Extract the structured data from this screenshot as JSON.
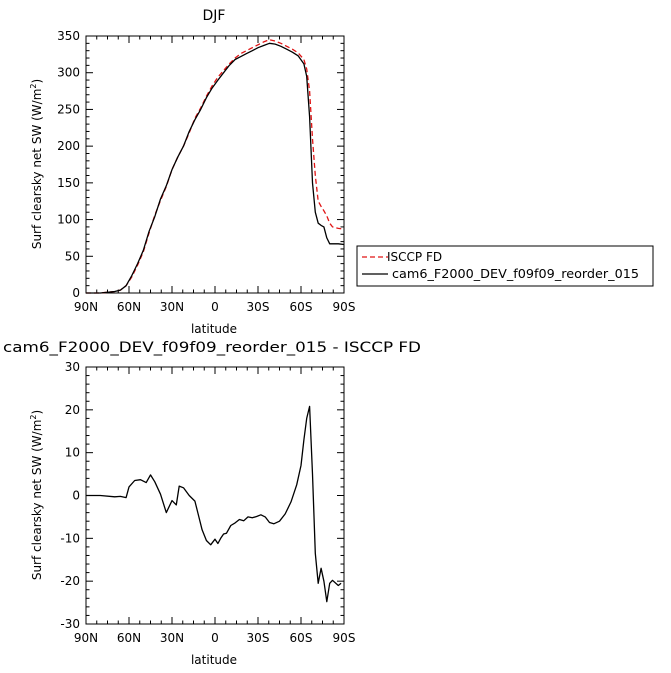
{
  "chart_data": [
    {
      "type": "line",
      "title": "DJF",
      "xlabel": "latitude",
      "ylabel": "Surf clearsky net SW (W/m",
      "ylabel_sup": "2",
      "ylabel_end": ")",
      "xlim": [
        90,
        -90
      ],
      "ylim": [
        0,
        350
      ],
      "xticks": [
        90,
        60,
        30,
        0,
        -30,
        -60,
        -90
      ],
      "xtick_labels": [
        "90N",
        "60N",
        "30N",
        "0",
        "30S",
        "60S",
        "90S"
      ],
      "yticks": [
        0,
        50,
        100,
        150,
        200,
        250,
        300,
        350
      ],
      "ytick_labels": [
        "0",
        "50",
        "100",
        "150",
        "200",
        "250",
        "300",
        "350"
      ],
      "legend_position": "right",
      "series": [
        {
          "name": "ISCCP FD",
          "color": "#e01414",
          "dash": "dashed",
          "x": [
            90,
            80,
            70,
            66,
            62,
            58,
            54,
            50,
            46,
            42,
            38,
            34,
            30,
            26,
            22,
            18,
            14,
            10,
            6,
            2,
            -2,
            -6,
            -10,
            -14,
            -18,
            -22,
            -26,
            -30,
            -34,
            -38,
            -42,
            -46,
            -50,
            -54,
            -58,
            -62,
            -64,
            -66,
            -68,
            -70,
            -72,
            -74,
            -76,
            -78,
            -80,
            -82,
            -86,
            -90
          ],
          "y": [
            0,
            0,
            2,
            4,
            10,
            22,
            38,
            56,
            82,
            106,
            126,
            145,
            168,
            185,
            200,
            218,
            238,
            252,
            268,
            282,
            294,
            303,
            312,
            320,
            326,
            330,
            334,
            338,
            342,
            345,
            343,
            340,
            336,
            332,
            327,
            318,
            305,
            275,
            210,
            160,
            125,
            118,
            112,
            105,
            95,
            90,
            88,
            87
          ]
        },
        {
          "name": "cam6_F2000_DEV_f09f09_reorder_015",
          "color": "#000000",
          "dash": "solid",
          "x": [
            90,
            80,
            70,
            66,
            62,
            58,
            54,
            50,
            46,
            42,
            38,
            34,
            30,
            26,
            22,
            18,
            14,
            10,
            6,
            2,
            -2,
            -6,
            -10,
            -14,
            -18,
            -22,
            -26,
            -30,
            -34,
            -38,
            -42,
            -46,
            -50,
            -54,
            -58,
            -62,
            -64,
            -66,
            -68,
            -70,
            -72,
            -74,
            -76,
            -78,
            -80,
            -82,
            -86,
            -90
          ],
          "y": [
            0,
            0,
            2,
            4,
            10,
            24,
            40,
            58,
            84,
            104,
            128,
            146,
            168,
            185,
            200,
            220,
            236,
            250,
            266,
            279,
            290,
            300,
            310,
            318,
            322,
            326,
            330,
            334,
            337,
            340,
            339,
            336,
            332,
            328,
            323,
            312,
            295,
            240,
            150,
            110,
            95,
            92,
            90,
            75,
            67,
            67,
            67,
            66
          ]
        }
      ]
    },
    {
      "type": "line",
      "title": "cam6_F2000_DEV_f09f09_reorder_015 - ISCCP FD",
      "xlabel": "latitude",
      "ylabel": "Surf clearsky net SW (W/m",
      "ylabel_sup": "2",
      "ylabel_end": ")",
      "xlim": [
        90,
        -90
      ],
      "ylim": [
        -30,
        30
      ],
      "xticks": [
        90,
        60,
        30,
        0,
        -30,
        -60,
        -90
      ],
      "xtick_labels": [
        "90N",
        "60N",
        "30N",
        "0",
        "30S",
        "60S",
        "90S"
      ],
      "yticks": [
        -30,
        -20,
        -10,
        0,
        10,
        20,
        30
      ],
      "ytick_labels": [
        "-30",
        "-20",
        "-10",
        "0",
        "10",
        "20",
        "30"
      ],
      "series": [
        {
          "name": "",
          "color": "#000000",
          "dash": "solid",
          "x": [
            90,
            80,
            70,
            66,
            62,
            60,
            56,
            52,
            48,
            45,
            42,
            38,
            34,
            30,
            27,
            25,
            22,
            18,
            14,
            12,
            9,
            6,
            3,
            0,
            -2,
            -4,
            -6,
            -8,
            -11,
            -14,
            -17,
            -20,
            -23,
            -26,
            -29,
            -32,
            -35,
            -38,
            -41,
            -45,
            -49,
            -53,
            -57,
            -60,
            -62,
            -64,
            -66,
            -68,
            -70,
            -72,
            -74,
            -76,
            -78,
            -80,
            -82,
            -86,
            -88
          ],
          "y": [
            0,
            0,
            -0.3,
            -0.2,
            -0.5,
            2,
            3.5,
            3.7,
            3,
            4.8,
            3.2,
            0.3,
            -4,
            -1.2,
            -2.2,
            2.2,
            1.8,
            0,
            -1.3,
            -4,
            -8,
            -10.5,
            -11.5,
            -10.2,
            -11.2,
            -10,
            -9,
            -8.8,
            -7,
            -6.4,
            -5.6,
            -5.9,
            -5,
            -5.2,
            -4.9,
            -4.5,
            -5,
            -6.3,
            -6.6,
            -6,
            -4.3,
            -1.5,
            2.5,
            7,
            13,
            18,
            20.8,
            5,
            -13.5,
            -20.5,
            -17,
            -20,
            -24.8,
            -20.5,
            -19.8,
            -21,
            -20.5
          ]
        }
      ]
    }
  ]
}
